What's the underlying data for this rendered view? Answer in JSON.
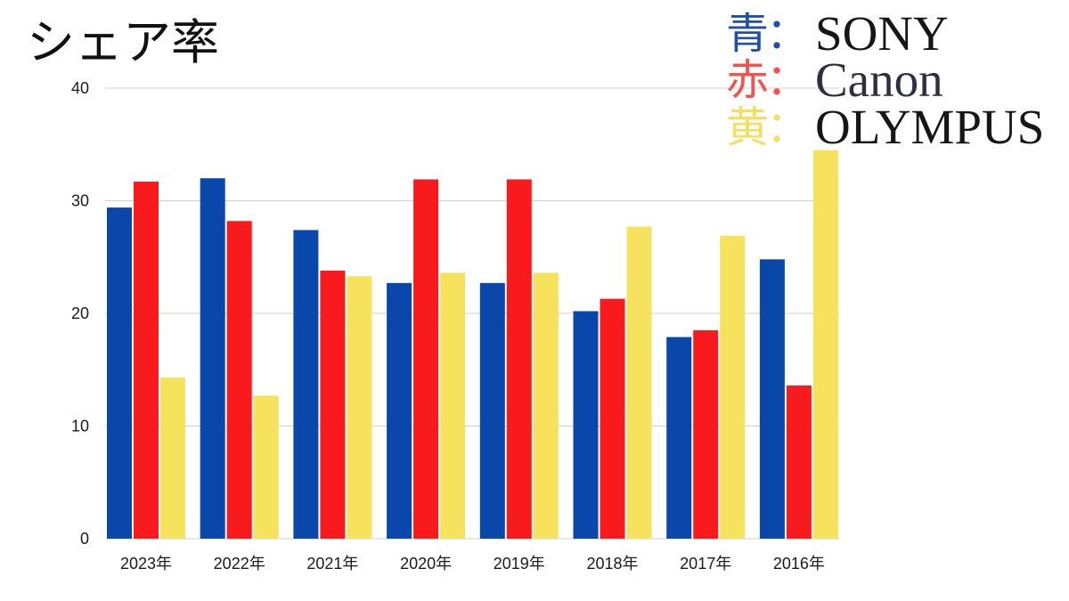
{
  "chart_data": {
    "type": "bar",
    "title": "シェア率",
    "categories": [
      "2023年",
      "2022年",
      "2021年",
      "2020年",
      "2019年",
      "2018年",
      "2017年",
      "2016年"
    ],
    "series": [
      {
        "name": "SONY",
        "color": "#0a47aa",
        "values": [
          29.4,
          32.0,
          27.4,
          22.7,
          22.7,
          20.2,
          17.9,
          24.8
        ]
      },
      {
        "name": "Canon",
        "color": "#f81a1c",
        "values": [
          31.7,
          28.2,
          23.8,
          31.9,
          31.9,
          21.3,
          18.5,
          13.6
        ]
      },
      {
        "name": "OLYMPUS",
        "color": "#f6e25c",
        "values": [
          14.3,
          12.7,
          23.3,
          23.6,
          23.6,
          27.7,
          26.9,
          34.5
        ]
      }
    ],
    "ylim": [
      0,
      40
    ],
    "yticks": [
      0,
      10,
      20,
      30,
      40
    ],
    "grid": true,
    "legend": {
      "placement": "top-right",
      "entries": [
        {
          "color_word": "青",
          "separator": "：",
          "word_color": "#1f4fa8",
          "name_color": "#161616"
        },
        {
          "color_word": "赤",
          "separator": "：",
          "word_color": "#f0544f",
          "name_color": "#2e3040"
        },
        {
          "color_word": "黄",
          "separator": "：",
          "word_color": "#f5df60",
          "name_color": "#161616"
        }
      ]
    }
  }
}
